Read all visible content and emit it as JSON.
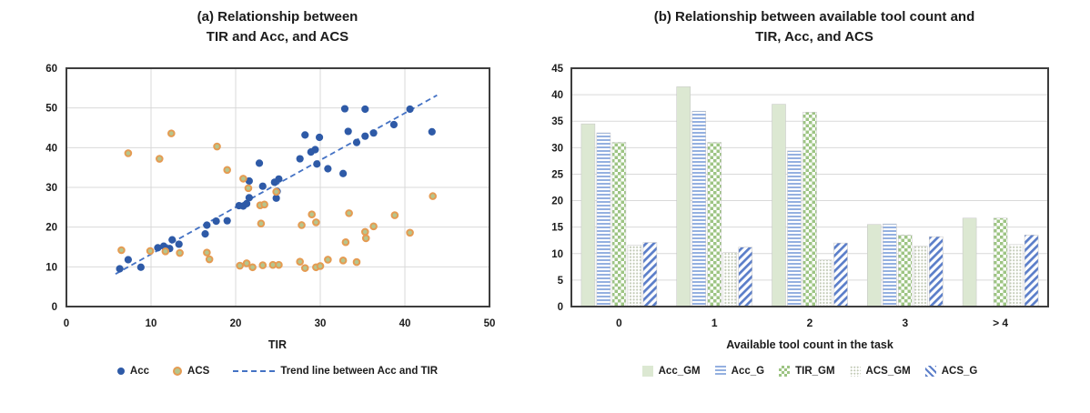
{
  "figure": {
    "background": "#ffffff",
    "style": {
      "grid_color": "#d9d9d9",
      "axis_color": "#3d3d3d",
      "text_color": "#1c1c1c"
    }
  },
  "chart_data": [
    {
      "type": "scatter",
      "title_lines": [
        "(a) Relationship between",
        "TIR and Acc, and ACS"
      ],
      "title": "(a) Relationship between TIR and Acc, and ACS",
      "xlabel": "TIR",
      "ylabel": "",
      "xlim": [
        0,
        50
      ],
      "ylim": [
        0,
        60
      ],
      "xticks": [
        0,
        10,
        20,
        30,
        40,
        50
      ],
      "yticks": [
        0,
        10,
        20,
        30,
        40,
        50,
        60
      ],
      "grid": true,
      "legend_position": "bottom",
      "series": [
        {
          "name": "Acc",
          "marker": "filled-circle",
          "color": "#2e5aa7",
          "points": [
            [
              6.3,
              9.5
            ],
            [
              7.3,
              11.8
            ],
            [
              8.8,
              9.9
            ],
            [
              10.8,
              14.8
            ],
            [
              11.5,
              15.2
            ],
            [
              12.2,
              14.6
            ],
            [
              12.5,
              16.8
            ],
            [
              13.3,
              15.7
            ],
            [
              16.4,
              18.3
            ],
            [
              16.6,
              20.5
            ],
            [
              17.7,
              21.5
            ],
            [
              19.0,
              21.6
            ],
            [
              20.4,
              25.4
            ],
            [
              20.9,
              25.3
            ],
            [
              21.3,
              25.9
            ],
            [
              21.6,
              27.4
            ],
            [
              21.6,
              31.6
            ],
            [
              22.8,
              36.1
            ],
            [
              23.2,
              30.3
            ],
            [
              24.6,
              31.3
            ],
            [
              24.8,
              27.3
            ],
            [
              24.9,
              29.0
            ],
            [
              25.1,
              32.1
            ],
            [
              27.6,
              37.2
            ],
            [
              28.2,
              43.2
            ],
            [
              28.9,
              38.9
            ],
            [
              29.4,
              39.5
            ],
            [
              29.6,
              35.9
            ],
            [
              29.9,
              42.6
            ],
            [
              30.9,
              34.7
            ],
            [
              32.7,
              33.5
            ],
            [
              32.9,
              49.8
            ],
            [
              33.3,
              44.1
            ],
            [
              34.3,
              41.3
            ],
            [
              35.3,
              49.7
            ],
            [
              35.3,
              42.9
            ],
            [
              36.3,
              43.7
            ],
            [
              38.7,
              45.8
            ],
            [
              40.6,
              49.7
            ],
            [
              43.2,
              44.0
            ]
          ]
        },
        {
          "name": "ACS",
          "marker": "ring-circle",
          "fill": "#b6c58d",
          "stroke": "#e59b52",
          "points": [
            [
              6.5,
              14.2
            ],
            [
              7.3,
              38.6
            ],
            [
              9.9,
              14.0
            ],
            [
              11.0,
              37.2
            ],
            [
              11.7,
              13.9
            ],
            [
              12.4,
              43.6
            ],
            [
              13.4,
              13.5
            ],
            [
              16.6,
              13.6
            ],
            [
              16.9,
              11.9
            ],
            [
              17.8,
              40.3
            ],
            [
              19.0,
              34.4
            ],
            [
              20.5,
              10.3
            ],
            [
              20.9,
              32.2
            ],
            [
              21.3,
              10.9
            ],
            [
              21.5,
              29.8
            ],
            [
              22.0,
              9.9
            ],
            [
              22.9,
              25.5
            ],
            [
              23.0,
              20.9
            ],
            [
              23.2,
              10.4
            ],
            [
              23.4,
              25.7
            ],
            [
              24.4,
              10.5
            ],
            [
              24.8,
              28.9
            ],
            [
              25.1,
              10.5
            ],
            [
              27.6,
              11.3
            ],
            [
              27.8,
              20.5
            ],
            [
              28.2,
              9.7
            ],
            [
              29.0,
              23.2
            ],
            [
              29.5,
              21.2
            ],
            [
              29.5,
              9.9
            ],
            [
              30.0,
              10.2
            ],
            [
              30.9,
              11.8
            ],
            [
              32.7,
              11.6
            ],
            [
              33.0,
              16.2
            ],
            [
              33.4,
              23.5
            ],
            [
              34.3,
              11.2
            ],
            [
              35.3,
              18.8
            ],
            [
              35.4,
              17.2
            ],
            [
              36.3,
              20.2
            ],
            [
              38.8,
              23.0
            ],
            [
              40.6,
              18.6
            ],
            [
              43.3,
              27.8
            ]
          ]
        }
      ],
      "trend": {
        "label": "Trend line between Acc and TIR",
        "color": "#4472c4",
        "style": "dashed",
        "from": [
          5.8,
          8.2
        ],
        "to": [
          43.8,
          53.2
        ]
      }
    },
    {
      "type": "bar",
      "title_lines": [
        "(b) Relationship between available tool count and",
        "TIR, Acc, and ACS"
      ],
      "title": "(b) Relationship between available tool count and TIR, Acc, and ACS",
      "xlabel": "Available tool count in the task",
      "ylabel": "",
      "categories": [
        "0",
        "1",
        "2",
        "3",
        "> 4"
      ],
      "ylim": [
        0,
        45
      ],
      "yticks": [
        0,
        5,
        10,
        15,
        20,
        25,
        30,
        35,
        40,
        45
      ],
      "grid": true,
      "legend_position": "bottom",
      "series": [
        {
          "name": "Acc_GM",
          "pattern": "solid",
          "color": "#dce8d2",
          "values": [
            34.5,
            41.5,
            38.2,
            15.5,
            16.7
          ]
        },
        {
          "name": "Acc_G",
          "pattern": "hstripe",
          "color": "#94b0e0",
          "values": [
            32.8,
            36.9,
            29.4,
            15.6,
            0
          ]
        },
        {
          "name": "TIR_GM",
          "pattern": "checker",
          "color": "#9dc483",
          "values": [
            31.0,
            31.0,
            36.7,
            13.5,
            16.7
          ]
        },
        {
          "name": "ACS_GM",
          "pattern": "dots",
          "color": "#c2cab6",
          "values": [
            11.6,
            10.2,
            8.8,
            11.4,
            11.7
          ]
        },
        {
          "name": "ACS_G",
          "pattern": "dstripe",
          "color": "#5b7ec9",
          "values": [
            12.1,
            11.2,
            12.0,
            13.2,
            13.5
          ]
        }
      ]
    }
  ]
}
